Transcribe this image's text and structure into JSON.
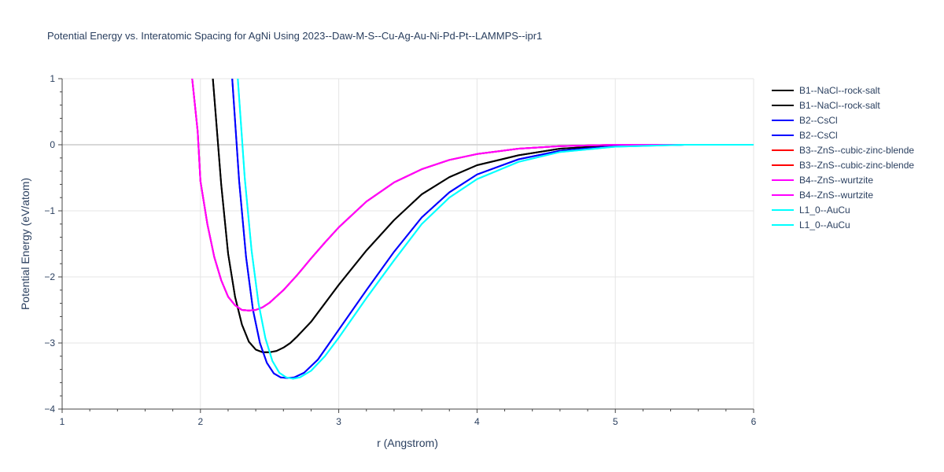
{
  "chart_data": {
    "type": "line",
    "title": "Potential Energy vs. Interatomic Spacing for AgNi Using 2023--Daw-M-S--Cu-Ag-Au-Ni-Pd-Pt--LAMMPS--ipr1",
    "xlabel": "r (Angstrom)",
    "ylabel": "Potential Energy (eV/atom)",
    "xlim": [
      1,
      6
    ],
    "ylim": [
      -4,
      1
    ],
    "x_ticks": [
      "1",
      "2",
      "3",
      "4",
      "5",
      "6"
    ],
    "y_ticks": [
      "1",
      "0",
      "−1",
      "−2",
      "−3",
      "−4"
    ],
    "grid": true,
    "legend_position": "right",
    "series": [
      {
        "name": "B1--NaCl--rock-salt",
        "color": "#000000",
        "x": [
          2.09,
          2.15,
          2.2,
          2.25,
          2.3,
          2.35,
          2.4,
          2.45,
          2.5,
          2.55,
          2.6,
          2.65,
          2.7,
          2.8,
          2.9,
          3.0,
          3.2,
          3.4,
          3.6,
          3.8,
          4.0,
          4.3,
          4.6,
          5.0,
          5.5,
          6.0
        ],
        "y": [
          1.0,
          -0.6,
          -1.65,
          -2.3,
          -2.72,
          -2.98,
          -3.1,
          -3.14,
          -3.14,
          -3.12,
          -3.07,
          -3.0,
          -2.9,
          -2.68,
          -2.4,
          -2.12,
          -1.6,
          -1.14,
          -0.75,
          -0.49,
          -0.31,
          -0.16,
          -0.06,
          -0.01,
          0.0,
          0.0
        ]
      },
      {
        "name": "B1--NaCl--rock-salt",
        "color": "#000000",
        "x": [
          2.09,
          2.15,
          2.2,
          2.25,
          2.3,
          2.35,
          2.4,
          2.45,
          2.5,
          2.55,
          2.6,
          2.65,
          2.7,
          2.8,
          2.9,
          3.0,
          3.2,
          3.4,
          3.6,
          3.8,
          4.0,
          4.3,
          4.6,
          5.0,
          5.5,
          6.0
        ],
        "y": [
          1.0,
          -0.6,
          -1.65,
          -2.3,
          -2.72,
          -2.98,
          -3.1,
          -3.14,
          -3.14,
          -3.12,
          -3.07,
          -3.0,
          -2.9,
          -2.68,
          -2.4,
          -2.12,
          -1.6,
          -1.14,
          -0.75,
          -0.49,
          -0.31,
          -0.16,
          -0.06,
          -0.01,
          0.0,
          0.0
        ]
      },
      {
        "name": "B2--CsCl",
        "color": "#0000ff",
        "x": [
          2.23,
          2.28,
          2.33,
          2.38,
          2.43,
          2.48,
          2.53,
          2.58,
          2.63,
          2.68,
          2.75,
          2.85,
          3.0,
          3.2,
          3.4,
          3.6,
          3.8,
          4.0,
          4.3,
          4.6,
          5.0,
          5.5,
          6.0
        ],
        "y": [
          1.0,
          -0.55,
          -1.7,
          -2.5,
          -3.0,
          -3.3,
          -3.46,
          -3.52,
          -3.53,
          -3.52,
          -3.45,
          -3.25,
          -2.8,
          -2.2,
          -1.62,
          -1.1,
          -0.72,
          -0.45,
          -0.22,
          -0.09,
          -0.02,
          0.0,
          0.0
        ]
      },
      {
        "name": "B2--CsCl",
        "color": "#0000ff",
        "x": [
          2.23,
          2.28,
          2.33,
          2.38,
          2.43,
          2.48,
          2.53,
          2.58,
          2.63,
          2.68,
          2.75,
          2.85,
          3.0,
          3.2,
          3.4,
          3.6,
          3.8,
          4.0,
          4.3,
          4.6,
          5.0,
          5.5,
          6.0
        ],
        "y": [
          1.0,
          -0.55,
          -1.7,
          -2.5,
          -3.0,
          -3.3,
          -3.46,
          -3.52,
          -3.53,
          -3.52,
          -3.45,
          -3.25,
          -2.8,
          -2.2,
          -1.62,
          -1.1,
          -0.72,
          -0.45,
          -0.22,
          -0.09,
          -0.02,
          0.0,
          0.0
        ]
      },
      {
        "name": "B3--ZnS--cubic-zinc-blende",
        "color": "#ff0000",
        "x": [
          1.94,
          1.98,
          2.0,
          2.05,
          2.1,
          2.15,
          2.2,
          2.25,
          2.3,
          2.35,
          2.4,
          2.45,
          2.5,
          2.6,
          2.7,
          2.8,
          2.9,
          3.0,
          3.2,
          3.4,
          3.6,
          3.8,
          4.0,
          4.3,
          4.6,
          5.0,
          5.5,
          6.0
        ],
        "y": [
          1.0,
          0.2,
          -0.55,
          -1.2,
          -1.7,
          -2.05,
          -2.3,
          -2.43,
          -2.5,
          -2.51,
          -2.5,
          -2.46,
          -2.39,
          -2.2,
          -1.97,
          -1.72,
          -1.48,
          -1.25,
          -0.86,
          -0.57,
          -0.37,
          -0.23,
          -0.14,
          -0.06,
          -0.02,
          0.0,
          0.0,
          0.0
        ]
      },
      {
        "name": "B3--ZnS--cubic-zinc-blende",
        "color": "#ff0000",
        "x": [
          1.94,
          1.98,
          2.0,
          2.05,
          2.1,
          2.15,
          2.2,
          2.25,
          2.3,
          2.35,
          2.4,
          2.45,
          2.5,
          2.6,
          2.7,
          2.8,
          2.9,
          3.0,
          3.2,
          3.4,
          3.6,
          3.8,
          4.0,
          4.3,
          4.6,
          5.0,
          5.5,
          6.0
        ],
        "y": [
          1.0,
          0.2,
          -0.55,
          -1.2,
          -1.7,
          -2.05,
          -2.3,
          -2.43,
          -2.5,
          -2.51,
          -2.5,
          -2.46,
          -2.39,
          -2.2,
          -1.97,
          -1.72,
          -1.48,
          -1.25,
          -0.86,
          -0.57,
          -0.37,
          -0.23,
          -0.14,
          -0.06,
          -0.02,
          0.0,
          0.0,
          0.0
        ]
      },
      {
        "name": "B4--ZnS--wurtzite",
        "color": "#ff00ff",
        "x": [
          1.94,
          1.98,
          2.0,
          2.05,
          2.1,
          2.15,
          2.2,
          2.25,
          2.3,
          2.35,
          2.4,
          2.45,
          2.5,
          2.6,
          2.7,
          2.8,
          2.9,
          3.0,
          3.2,
          3.4,
          3.6,
          3.8,
          4.0,
          4.3,
          4.6,
          5.0,
          5.5,
          6.0
        ],
        "y": [
          1.0,
          0.2,
          -0.55,
          -1.2,
          -1.7,
          -2.05,
          -2.3,
          -2.43,
          -2.5,
          -2.51,
          -2.5,
          -2.46,
          -2.39,
          -2.2,
          -1.97,
          -1.72,
          -1.48,
          -1.25,
          -0.86,
          -0.57,
          -0.37,
          -0.23,
          -0.14,
          -0.06,
          -0.02,
          0.0,
          0.0,
          0.0
        ]
      },
      {
        "name": "B4--ZnS--wurtzite",
        "color": "#ff00ff",
        "x": [
          1.94,
          1.98,
          2.0,
          2.05,
          2.1,
          2.15,
          2.2,
          2.25,
          2.3,
          2.35,
          2.4,
          2.45,
          2.5,
          2.6,
          2.7,
          2.8,
          2.9,
          3.0,
          3.2,
          3.4,
          3.6,
          3.8,
          4.0,
          4.3,
          4.6,
          5.0,
          5.5,
          6.0
        ],
        "y": [
          1.0,
          0.2,
          -0.55,
          -1.2,
          -1.7,
          -2.05,
          -2.3,
          -2.43,
          -2.5,
          -2.51,
          -2.5,
          -2.46,
          -2.39,
          -2.2,
          -1.97,
          -1.72,
          -1.48,
          -1.25,
          -0.86,
          -0.57,
          -0.37,
          -0.23,
          -0.14,
          -0.06,
          -0.02,
          0.0,
          0.0,
          0.0
        ]
      },
      {
        "name": "L1_0--AuCu",
        "color": "#00ffff",
        "x": [
          2.27,
          2.32,
          2.37,
          2.42,
          2.47,
          2.52,
          2.57,
          2.62,
          2.67,
          2.72,
          2.8,
          2.9,
          3.0,
          3.2,
          3.4,
          3.6,
          3.8,
          4.0,
          4.3,
          4.6,
          5.0,
          5.5,
          6.0
        ],
        "y": [
          1.0,
          -0.5,
          -1.6,
          -2.4,
          -2.93,
          -3.27,
          -3.45,
          -3.52,
          -3.54,
          -3.52,
          -3.42,
          -3.2,
          -2.92,
          -2.32,
          -1.75,
          -1.2,
          -0.8,
          -0.52,
          -0.26,
          -0.11,
          -0.03,
          0.0,
          0.0
        ]
      },
      {
        "name": "L1_0--AuCu",
        "color": "#00ffff",
        "x": [
          2.27,
          2.32,
          2.37,
          2.42,
          2.47,
          2.52,
          2.57,
          2.62,
          2.67,
          2.72,
          2.8,
          2.9,
          3.0,
          3.2,
          3.4,
          3.6,
          3.8,
          4.0,
          4.3,
          4.6,
          5.0,
          5.5,
          6.0
        ],
        "y": [
          1.0,
          -0.5,
          -1.6,
          -2.4,
          -2.93,
          -3.27,
          -3.45,
          -3.52,
          -3.54,
          -3.52,
          -3.42,
          -3.2,
          -2.92,
          -2.32,
          -1.75,
          -1.2,
          -0.8,
          -0.52,
          -0.26,
          -0.11,
          -0.03,
          0.0,
          0.0
        ]
      }
    ]
  }
}
